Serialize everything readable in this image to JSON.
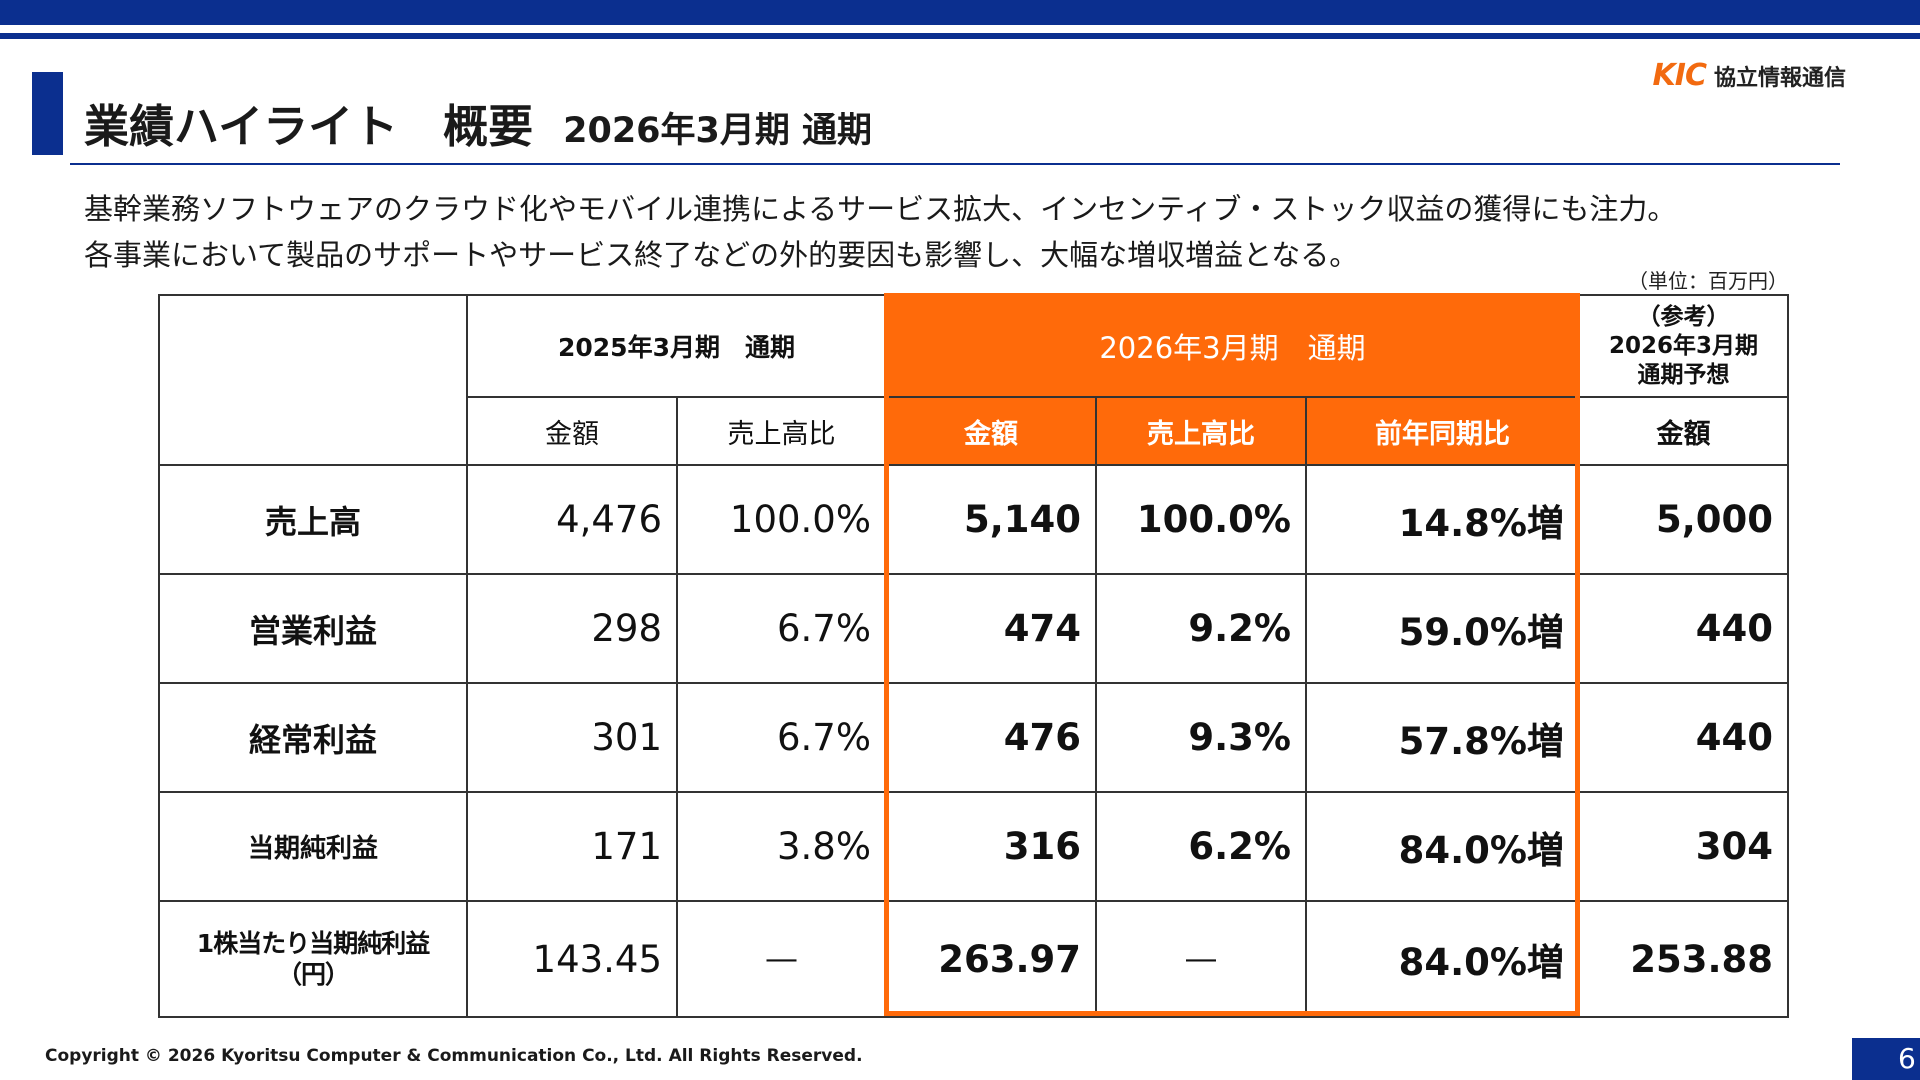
{
  "logo": {
    "mark": "KIC",
    "company": "協立情報通信"
  },
  "title": {
    "main": "業績ハイライト　概要",
    "sub": "2026年3月期 通期"
  },
  "summary": [
    "基幹業務ソフトウェアのクラウド化やモバイル連携によるサービス拡大、インセンティブ・ストック収益の獲得にも注力。",
    "各事業において製品のサポートやサービス終了などの外的要因も影響し、大幅な増収増益となる。"
  ],
  "unit_note": "（単位：百万円）",
  "table": {
    "group_headers": {
      "prev": "2025年3月期　通期",
      "curr": "2026年3月期　通期",
      "ref": [
        "（参考）",
        "2026年3月期",
        "通期予想"
      ]
    },
    "sub_headers": {
      "prev_amount": "金額",
      "prev_ratio": "売上高比",
      "curr_amount": "金額",
      "curr_ratio": "売上高比",
      "curr_yoy": "前年同期比",
      "ref_amount": "金額"
    },
    "rows": [
      {
        "label": "売上高",
        "prev_amount": "4,476",
        "prev_ratio": "100.0%",
        "curr_amount": "5,140",
        "curr_ratio": "100.0%",
        "curr_yoy": "14.8%増",
        "ref_amount": "5,000"
      },
      {
        "label": "営業利益",
        "prev_amount": "298",
        "prev_ratio": "6.7%",
        "curr_amount": "474",
        "curr_ratio": "9.2%",
        "curr_yoy": "59.0%増",
        "ref_amount": "440"
      },
      {
        "label": "経常利益",
        "prev_amount": "301",
        "prev_ratio": "6.7%",
        "curr_amount": "476",
        "curr_ratio": "9.3%",
        "curr_yoy": "57.8%増",
        "ref_amount": "440"
      },
      {
        "label": "当期純利益",
        "prev_amount": "171",
        "prev_ratio": "3.8%",
        "curr_amount": "316",
        "curr_ratio": "6.2%",
        "curr_yoy": "84.0%増",
        "ref_amount": "304"
      },
      {
        "label": [
          "1株当たり当期純利益",
          "（円）"
        ],
        "prev_amount": "143.45",
        "prev_ratio": "―",
        "curr_amount": "263.97",
        "curr_ratio": "―",
        "curr_yoy": "84.0%増",
        "ref_amount": "253.88"
      }
    ]
  },
  "footer": {
    "copyright": "Copyright © 2026 Kyoritsu Computer & Communication Co., Ltd. All Rights Reserved.",
    "page_number": "6"
  },
  "colors": {
    "navy": "#0b2f8f",
    "accent_orange": "#ff6a0a",
    "logo_orange": "#f26a10"
  }
}
